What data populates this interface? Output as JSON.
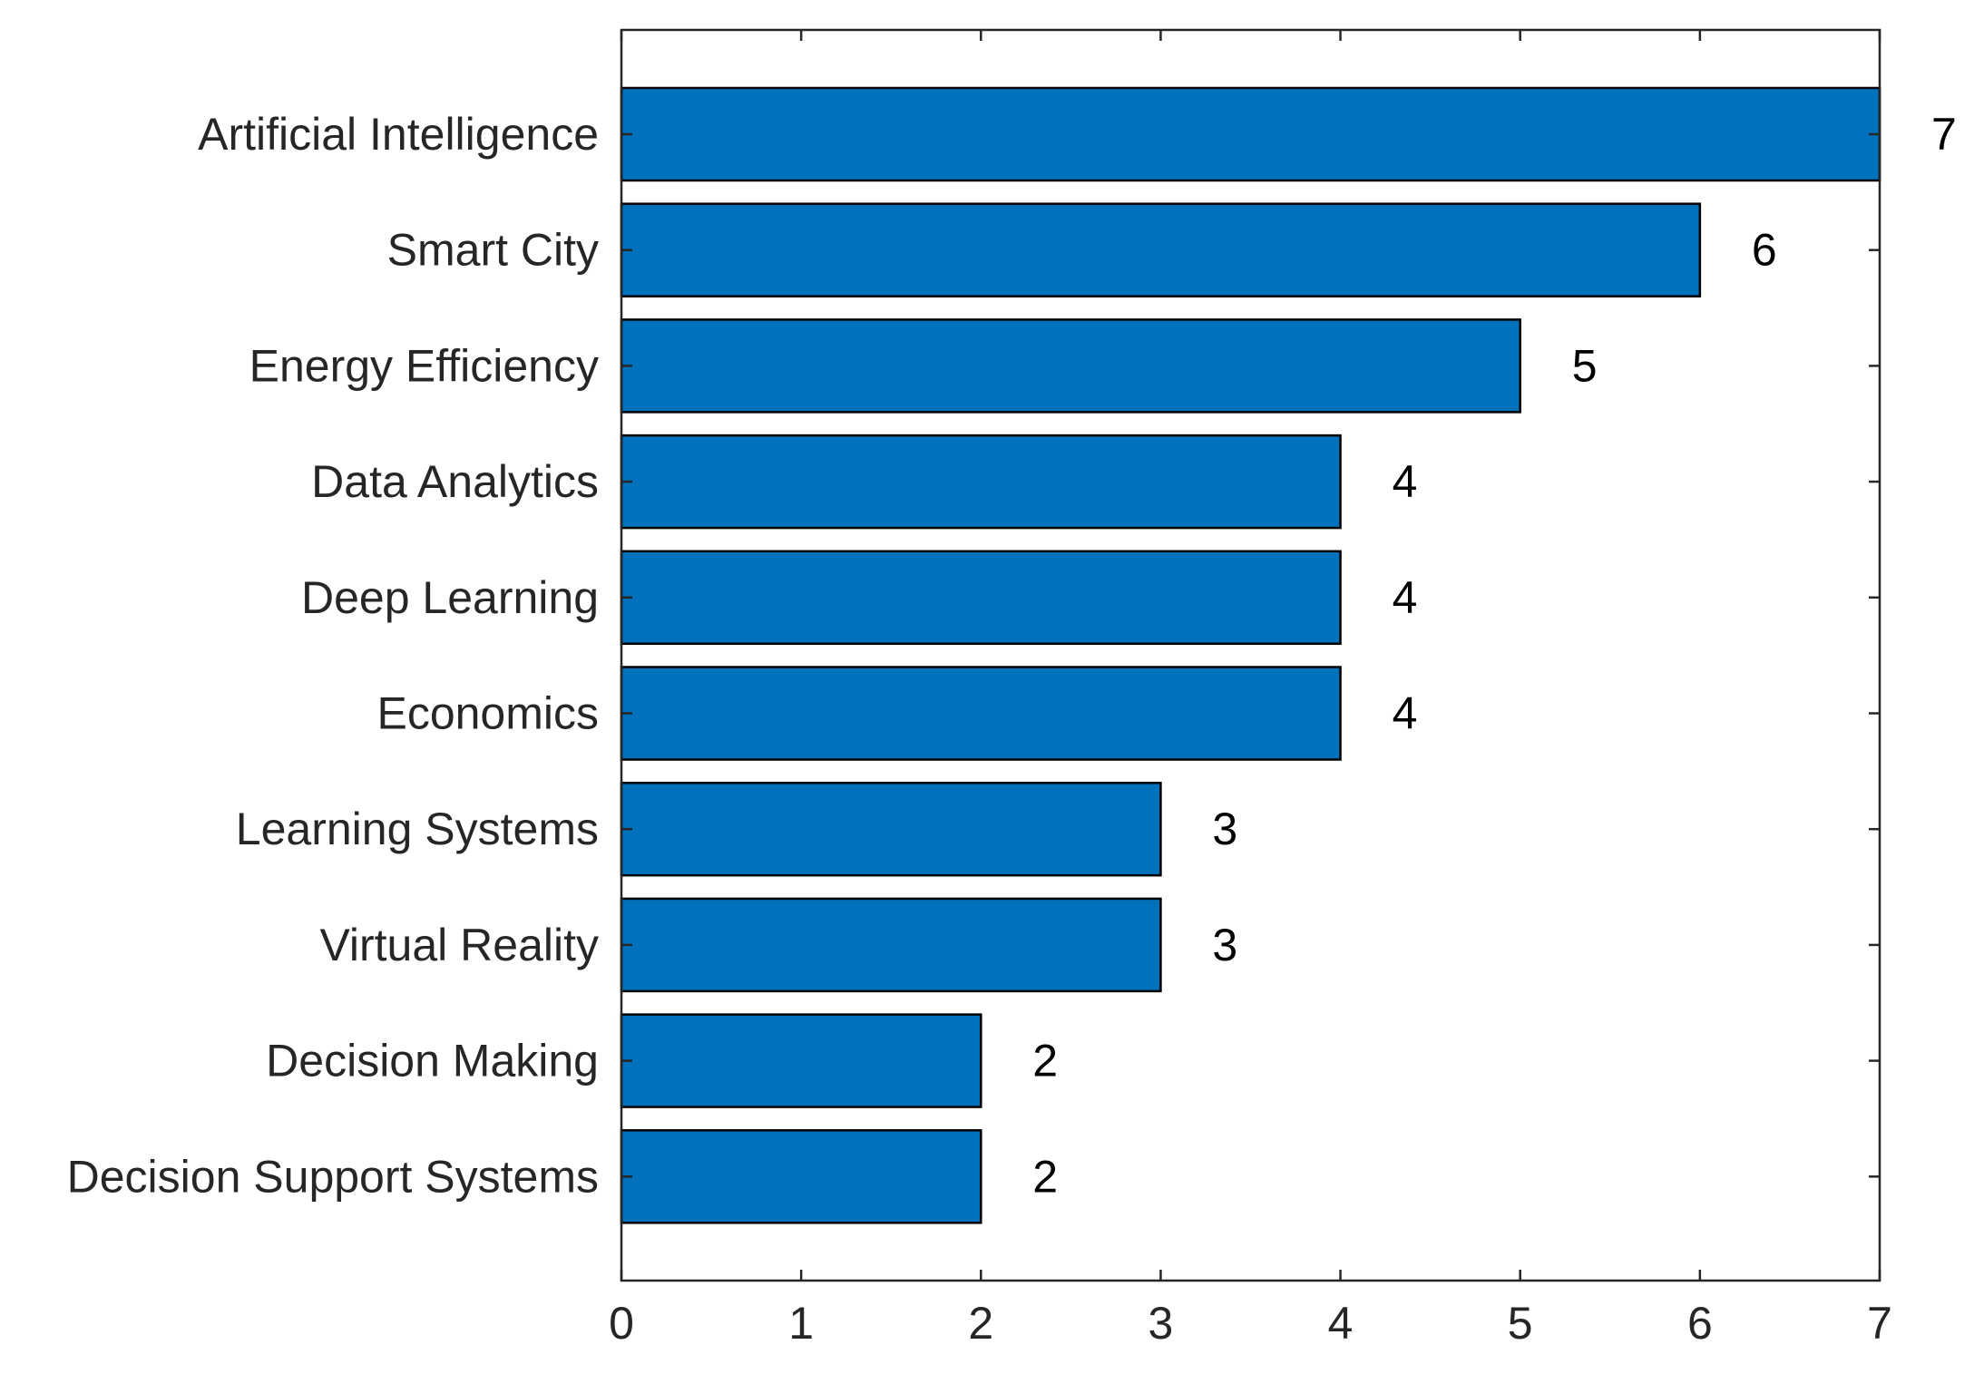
{
  "chart_data": {
    "type": "bar",
    "orientation": "horizontal",
    "categories": [
      "Artificial Intelligence",
      "Smart City",
      "Energy Efficiency",
      "Data Analytics",
      "Deep Learning",
      "Economics",
      "Learning Systems",
      "Virtual Reality",
      "Decision Making",
      "Decision Support Systems"
    ],
    "values": [
      7,
      6,
      5,
      4,
      4,
      4,
      3,
      3,
      2,
      2
    ],
    "data_labels": [
      "7",
      "6",
      "5",
      "4",
      "4",
      "4",
      "3",
      "3",
      "2",
      "2"
    ],
    "title": "",
    "xlabel": "",
    "ylabel": "",
    "xlim": [
      0,
      7
    ],
    "xticks": [
      0,
      1,
      2,
      3,
      4,
      5,
      6,
      7
    ],
    "xtick_labels": [
      "0",
      "1",
      "2",
      "3",
      "4",
      "5",
      "6",
      "7"
    ],
    "grid": false,
    "legend": "none",
    "colors": {
      "bar_fill": "#0072BD",
      "bar_edge": "#000000",
      "axis": "#262626",
      "label_text": "#262626",
      "data_label_text": "#000000"
    }
  }
}
